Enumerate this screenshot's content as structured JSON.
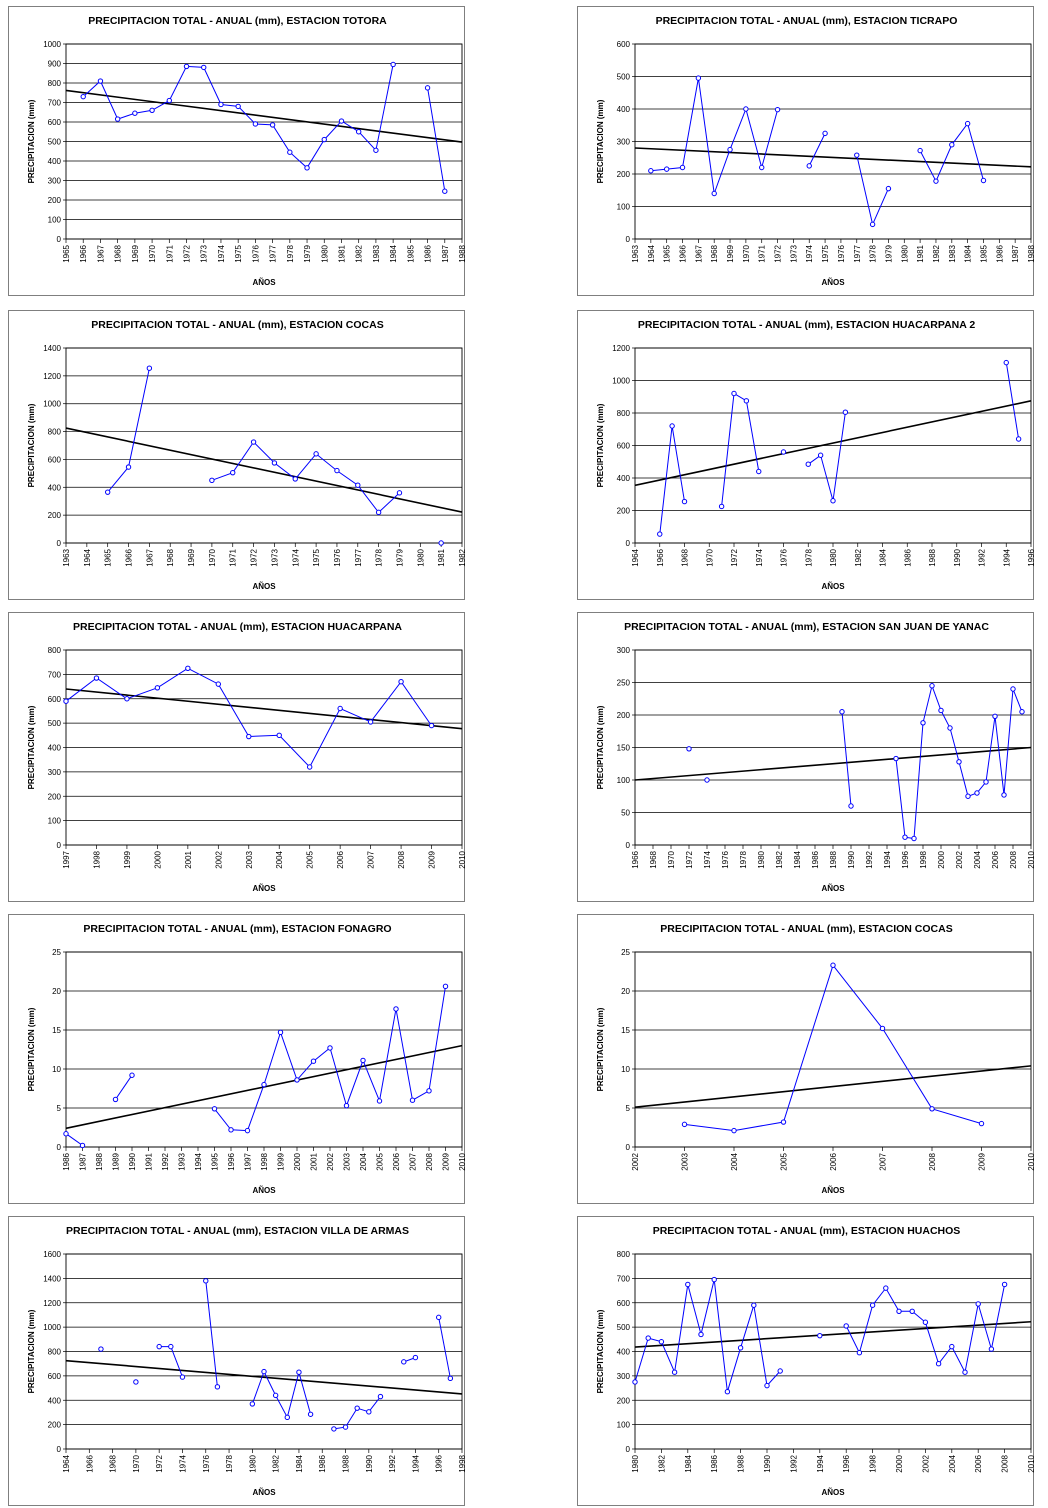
{
  "chart_data": [
    {
      "type": "line",
      "title": "PRECIPITACION TOTAL - ANUAL (mm), ESTACION TOTORA",
      "xlabel": "AÑOS",
      "ylabel": "PRECIPITACION (mm)",
      "xlim": [
        1965,
        1988
      ],
      "ylim": [
        0,
        1000
      ],
      "ystep": 100,
      "xticks": [
        1965,
        1966,
        1967,
        1968,
        1969,
        1970,
        1971,
        1972,
        1973,
        1974,
        1975,
        1976,
        1977,
        1978,
        1979,
        1980,
        1981,
        1982,
        1983,
        1984,
        1985,
        1986,
        1987,
        1988
      ],
      "series": [
        {
          "x": [
            1966,
            1967,
            1968,
            1969,
            1970,
            1971,
            1972,
            1973,
            1974,
            1975,
            1976,
            1977,
            1978,
            1979,
            1980,
            1981,
            1982,
            1983,
            1984,
            1985,
            1986,
            1987
          ],
          "y": [
            730,
            810,
            615,
            645,
            660,
            710,
            885,
            880,
            690,
            680,
            590,
            585,
            445,
            365,
            510,
            605,
            550,
            455,
            895,
            null,
            775,
            245
          ]
        }
      ],
      "trend": [
        762,
        497
      ],
      "colors": {
        "series": "#0000ff",
        "trend": "#000000"
      }
    },
    {
      "type": "line",
      "title": "PRECIPITACION TOTAL - ANUAL (mm), ESTACION TICRAPO",
      "xlabel": "AÑOS",
      "ylabel": "PRECIPITACION (mm)",
      "xlim": [
        1963,
        1988
      ],
      "ylim": [
        0,
        600
      ],
      "ystep": 100,
      "xticks": [
        1963,
        1964,
        1965,
        1966,
        1967,
        1968,
        1969,
        1970,
        1971,
        1972,
        1973,
        1974,
        1975,
        1976,
        1977,
        1978,
        1979,
        1980,
        1981,
        1982,
        1983,
        1984,
        1985,
        1986,
        1987,
        1988
      ],
      "series": [
        {
          "x": [
            1964,
            1965,
            1966,
            1967,
            1968,
            1969,
            1970,
            1971,
            1972,
            1973,
            1974,
            1975,
            1976,
            1977,
            1978,
            1979,
            1980,
            1981,
            1982,
            1983,
            1984,
            1985
          ],
          "y": [
            210,
            215,
            220,
            495,
            140,
            275,
            400,
            220,
            398,
            null,
            225,
            325,
            null,
            258,
            45,
            155,
            null,
            272,
            178,
            290,
            355,
            180
          ]
        }
      ],
      "trend": [
        280,
        222
      ],
      "colors": {
        "series": "#0000ff",
        "trend": "#000000"
      }
    },
    {
      "type": "line",
      "title": "PRECIPITACION TOTAL - ANUAL (mm), ESTACION COCAS",
      "xlabel": "AÑOS",
      "ylabel": "PRECIPITACION (mm)",
      "xlim": [
        1963,
        1982
      ],
      "ylim": [
        0,
        1400
      ],
      "ystep": 200,
      "xticks": [
        1963,
        1964,
        1965,
        1966,
        1967,
        1968,
        1969,
        1970,
        1971,
        1972,
        1973,
        1974,
        1975,
        1976,
        1977,
        1978,
        1979,
        1980,
        1981,
        1982
      ],
      "series": [
        {
          "x": [
            1965,
            1966,
            1967,
            1968,
            1969,
            1970,
            1971,
            1972,
            1973,
            1974,
            1975,
            1976,
            1977,
            1978,
            1979,
            1980,
            1981
          ],
          "y": [
            365,
            545,
            1255,
            null,
            null,
            450,
            505,
            725,
            575,
            460,
            640,
            520,
            415,
            220,
            360,
            null,
            0
          ]
        }
      ],
      "trend": [
        825,
        222
      ],
      "colors": {
        "series": "#0000ff",
        "trend": "#000000"
      }
    },
    {
      "type": "line",
      "title": "PRECIPITACION TOTAL - ANUAL (mm), ESTACION HUACARPANA 2",
      "xlabel": "AÑOS",
      "ylabel": "PRECIPITACION (mm)",
      "xlim": [
        1964,
        1996
      ],
      "ylim": [
        0,
        1200
      ],
      "ystep": 200,
      "xticks": [
        1964,
        1966,
        1968,
        1970,
        1972,
        1974,
        1976,
        1978,
        1980,
        1982,
        1984,
        1986,
        1988,
        1990,
        1992,
        1994,
        1996
      ],
      "series": [
        {
          "x": [
            1966,
            1967,
            1968,
            1969,
            1970,
            1971,
            1972,
            1973,
            1974,
            1975,
            1976,
            1977,
            1978,
            1979,
            1980,
            1981,
            1982,
            1983,
            1984,
            1985,
            1986,
            1987,
            1988,
            1989,
            1990,
            1991,
            1992,
            1993,
            1994,
            1995
          ],
          "y": [
            55,
            720,
            255,
            null,
            null,
            225,
            920,
            875,
            440,
            null,
            560,
            null,
            485,
            540,
            260,
            805,
            null,
            null,
            null,
            null,
            null,
            null,
            null,
            null,
            null,
            null,
            null,
            null,
            1110,
            640
          ]
        }
      ],
      "trend": [
        355,
        875
      ],
      "colors": {
        "series": "#0000ff",
        "trend": "#000000"
      }
    },
    {
      "type": "line",
      "title": "PRECIPITACION TOTAL - ANUAL (mm), ESTACION HUACARPANA",
      "xlabel": "AÑOS",
      "ylabel": "PRECIPITACION (mm)",
      "xlim": [
        1997,
        2010
      ],
      "ylim": [
        0,
        800
      ],
      "ystep": 100,
      "xticks": [
        1997,
        1998,
        1999,
        2000,
        2001,
        2002,
        2003,
        2004,
        2005,
        2006,
        2007,
        2008,
        2009,
        2010
      ],
      "series": [
        {
          "x": [
            1997,
            1998,
            1999,
            2000,
            2001,
            2002,
            2003,
            2004,
            2005,
            2006,
            2007,
            2008,
            2009
          ],
          "y": [
            590,
            685,
            600,
            645,
            725,
            660,
            445,
            450,
            320,
            560,
            505,
            670,
            490
          ]
        }
      ],
      "trend": [
        640,
        477
      ],
      "colors": {
        "series": "#0000ff",
        "trend": "#000000"
      }
    },
    {
      "type": "line",
      "title": "PRECIPITACION TOTAL - ANUAL (mm), ESTACION SAN JUAN DE YANAC",
      "xlabel": "AÑOS",
      "ylabel": "PRECIPITACION (mm)",
      "xlim": [
        1966,
        2010
      ],
      "ylim": [
        0,
        300
      ],
      "ystep": 50,
      "xticks": [
        1966,
        1968,
        1970,
        1972,
        1974,
        1976,
        1978,
        1980,
        1982,
        1984,
        1986,
        1988,
        1990,
        1992,
        1994,
        1996,
        1998,
        2000,
        2002,
        2004,
        2006,
        2008,
        2010
      ],
      "series": [
        {
          "x": [
            1972,
            1973,
            1974,
            1975,
            1976,
            1977,
            1978,
            1979,
            1980,
            1981,
            1982,
            1983,
            1984,
            1985,
            1986,
            1987,
            1988,
            1989,
            1990,
            1991,
            1992,
            1993,
            1994,
            1995,
            1996,
            1997,
            1998,
            1999,
            2000,
            2001,
            2002,
            2003,
            2004,
            2005,
            2006,
            2007,
            2008,
            2009
          ],
          "y": [
            148,
            null,
            100,
            null,
            null,
            null,
            null,
            null,
            null,
            null,
            null,
            null,
            null,
            null,
            null,
            null,
            null,
            205,
            60,
            null,
            null,
            null,
            null,
            133,
            12,
            10,
            188,
            245,
            207,
            180,
            128,
            75,
            80,
            97,
            198,
            77,
            240,
            205
          ]
        }
      ],
      "trend": [
        100,
        150
      ],
      "colors": {
        "series": "#0000ff",
        "trend": "#000000"
      }
    },
    {
      "type": "line",
      "title": "PRECIPITACION TOTAL - ANUAL (mm), ESTACION FONAGRO",
      "xlabel": "AÑOS",
      "ylabel": "PRECIPITACION (mm)",
      "xlim": [
        1986,
        2010
      ],
      "ylim": [
        0,
        25
      ],
      "ystep": 5,
      "xticks": [
        1986,
        1987,
        1988,
        1989,
        1990,
        1991,
        1992,
        1993,
        1994,
        1995,
        1996,
        1997,
        1998,
        1999,
        2000,
        2001,
        2002,
        2003,
        2004,
        2005,
        2006,
        2007,
        2008,
        2009,
        2010
      ],
      "series": [
        {
          "x": [
            1986,
            1987,
            1988,
            1989,
            1990,
            1991,
            1992,
            1993,
            1994,
            1995,
            1996,
            1997,
            1998,
            1999,
            2000,
            2001,
            2002,
            2003,
            2004,
            2005,
            2006,
            2007,
            2008,
            2009
          ],
          "y": [
            1.7,
            0.2,
            null,
            6.1,
            9.2,
            null,
            null,
            null,
            null,
            4.9,
            2.2,
            2.1,
            8.0,
            14.7,
            8.6,
            11.0,
            12.7,
            5.3,
            11.1,
            5.9,
            17.7,
            6.0,
            7.2,
            20.6
          ]
        }
      ],
      "trend": [
        2.4,
        13.0
      ],
      "colors": {
        "series": "#0000ff",
        "trend": "#000000"
      }
    },
    {
      "type": "line",
      "title": "PRECIPITACION TOTAL - ANUAL (mm), ESTACION COCAS",
      "xlabel": "AÑOS",
      "ylabel": "PRECIPITACION (mm)",
      "xlim": [
        2002,
        2010
      ],
      "ylim": [
        0,
        25
      ],
      "ystep": 5,
      "xticks": [
        2002,
        2003,
        2004,
        2005,
        2006,
        2007,
        2008,
        2009,
        2010
      ],
      "series": [
        {
          "x": [
            2003,
            2004,
            2005,
            2006,
            2007,
            2008,
            2009
          ],
          "y": [
            2.9,
            2.1,
            3.2,
            23.3,
            15.2,
            4.9,
            3.0
          ]
        }
      ],
      "trend": [
        5.1,
        10.4
      ],
      "colors": {
        "series": "#0000ff",
        "trend": "#000000"
      }
    },
    {
      "type": "line",
      "title": "PRECIPITACION TOTAL - ANUAL (mm), ESTACION VILLA DE ARMAS",
      "xlabel": "AÑOS",
      "ylabel": "PRECIPITACION (mm)",
      "xlim": [
        1964,
        1998
      ],
      "ylim": [
        0,
        1600
      ],
      "ystep": 200,
      "xticks": [
        1964,
        1966,
        1968,
        1970,
        1972,
        1974,
        1976,
        1978,
        1980,
        1982,
        1984,
        1986,
        1988,
        1990,
        1992,
        1994,
        1996,
        1998
      ],
      "series": [
        {
          "x": [
            1967,
            1968,
            1969,
            1970,
            1971,
            1972,
            1973,
            1974,
            1975,
            1976,
            1977,
            1978,
            1979,
            1980,
            1981,
            1982,
            1983,
            1984,
            1985,
            1986,
            1987,
            1988,
            1989,
            1990,
            1991,
            1992,
            1993,
            1994,
            1995,
            1996,
            1997
          ],
          "y": [
            820,
            null,
            null,
            550,
            null,
            840,
            840,
            590,
            null,
            1380,
            510,
            null,
            null,
            370,
            635,
            440,
            260,
            630,
            285,
            null,
            165,
            180,
            335,
            305,
            430,
            null,
            715,
            750,
            null,
            1080,
            580
          ]
        }
      ],
      "trend": [
        725,
        452
      ],
      "colors": {
        "series": "#0000ff",
        "trend": "#000000"
      }
    },
    {
      "type": "line",
      "title": "PRECIPITACION TOTAL - ANUAL (mm), ESTACION HUACHOS",
      "xlabel": "AÑOS",
      "ylabel": "PRECIPITACION (mm)",
      "xlim": [
        1980,
        2010
      ],
      "ylim": [
        0,
        800
      ],
      "ystep": 100,
      "xticks": [
        1980,
        1982,
        1984,
        1986,
        1988,
        1990,
        1992,
        1994,
        1996,
        1998,
        2000,
        2002,
        2004,
        2006,
        2008,
        2010
      ],
      "series": [
        {
          "x": [
            1980,
            1981,
            1982,
            1983,
            1984,
            1985,
            1986,
            1987,
            1988,
            1989,
            1990,
            1991,
            1992,
            1993,
            1994,
            1995,
            1996,
            1997,
            1998,
            1999,
            2000,
            2001,
            2002,
            2003,
            2004,
            2005,
            2006,
            2007,
            2008
          ],
          "y": [
            275,
            455,
            440,
            315,
            675,
            470,
            695,
            235,
            415,
            590,
            260,
            320,
            null,
            null,
            465,
            null,
            505,
            395,
            590,
            660,
            565,
            565,
            520,
            350,
            420,
            315,
            595,
            410,
            675
          ]
        }
      ],
      "trend": [
        418,
        522
      ],
      "colors": {
        "series": "#0000ff",
        "trend": "#000000"
      }
    }
  ]
}
